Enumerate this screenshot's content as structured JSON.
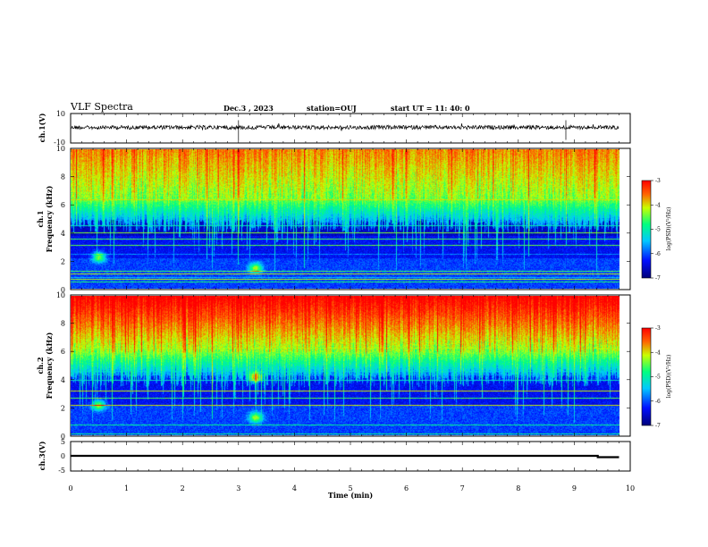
{
  "header": {
    "title": "VLF Spectra",
    "date": "Dec.3 , 2023",
    "station": "station=OUJ",
    "start": "start UT = 11: 40: 0"
  },
  "colors": {
    "noise_trace": "#000000",
    "colormap": [
      "#00007a",
      "#0010ff",
      "#00c8ff",
      "#00ff80",
      "#c8ff00",
      "#ff6400",
      "#ff0000"
    ]
  },
  "chart_data": [
    {
      "type": "line",
      "name": "ch1-waveform",
      "ylabel": "ch.1(V)",
      "ylim": [
        -10,
        10
      ],
      "yticks": [
        "10",
        "-10"
      ],
      "mean_value": 0,
      "spike_times_min": [
        3.0,
        8.85
      ]
    },
    {
      "type": "heatmap",
      "name": "ch1-spectrogram",
      "ylabel_channel": "ch.1",
      "ylabel": "Frequency (kHz)",
      "ylim": [
        0,
        10
      ],
      "yticks": [
        "0",
        "2",
        "4",
        "6",
        "8",
        "10"
      ],
      "colorbar": {
        "label": "log(PSD)(V²/Hz)",
        "range": [
          -7,
          -3
        ],
        "ticks": [
          "-3",
          "-4",
          "-5",
          "-6",
          "-7"
        ]
      },
      "features": {
        "high_band_khz": [
          6.5,
          10
        ],
        "low_band_khz": [
          0,
          6
        ],
        "bright_spots": [
          [
            0.5,
            2.3
          ],
          [
            3.3,
            1.5
          ]
        ]
      }
    },
    {
      "type": "heatmap",
      "name": "ch2-spectrogram",
      "ylabel_channel": "ch.2",
      "ylabel": "Frequency (kHz)",
      "ylim": [
        0,
        10
      ],
      "yticks": [
        "0",
        "2",
        "4",
        "6",
        "8",
        "10"
      ],
      "colorbar": {
        "label": "log(PSD)(V²/Hz)",
        "range": [
          -7,
          -3
        ],
        "ticks": [
          "-3",
          "-4",
          "-5",
          "-6",
          "-7"
        ]
      },
      "features": {
        "high_band_khz": [
          6,
          10
        ],
        "low_band_khz": [
          0,
          6
        ],
        "bright_spots": [
          [
            0.5,
            2.2
          ],
          [
            3.3,
            1.3
          ],
          [
            3.3,
            4.2
          ]
        ]
      }
    },
    {
      "type": "line",
      "name": "ch3-signal",
      "ylabel": "ch.3(V)",
      "ylim": [
        -5,
        5
      ],
      "yticks": [
        "5",
        "0",
        "-5"
      ],
      "value": 0,
      "end_drop_min": 9.42
    }
  ],
  "xaxis": {
    "label": "Time (min)",
    "range": [
      0,
      10
    ],
    "ticks": [
      "0",
      "1",
      "2",
      "3",
      "4",
      "5",
      "6",
      "7",
      "8",
      "9",
      "10"
    ],
    "data_end_min": 9.8
  }
}
